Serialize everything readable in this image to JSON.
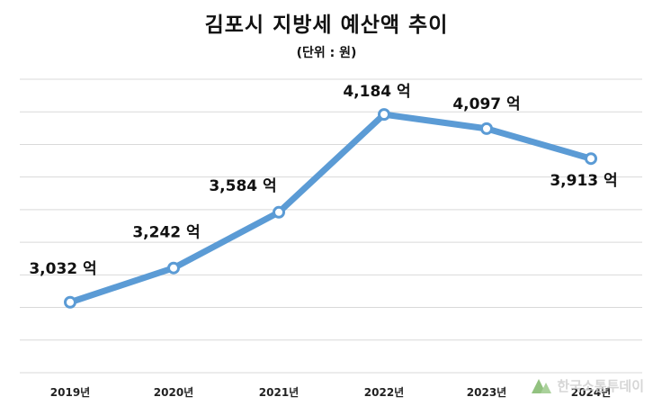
{
  "chart_data": {
    "type": "line",
    "title": "김포시 지방세 예산액 추이",
    "subtitle": "(단위 : 원)",
    "categories": [
      "2019년",
      "2020년",
      "2021년",
      "2022년",
      "2023년",
      "2024년"
    ],
    "series": [
      {
        "values": [
          3032,
          3242,
          3584,
          4184,
          4097,
          3913
        ]
      }
    ],
    "data_labels": [
      "3,032 억",
      "3,242 억",
      "3,584 억",
      "4,184 억",
      "4,097 억",
      "3,913 억"
    ],
    "ylim": [
      2600,
      4400
    ],
    "grid": true,
    "line_color": "#5b9bd5"
  },
  "watermark": {
    "text": "한국소통투데이"
  }
}
